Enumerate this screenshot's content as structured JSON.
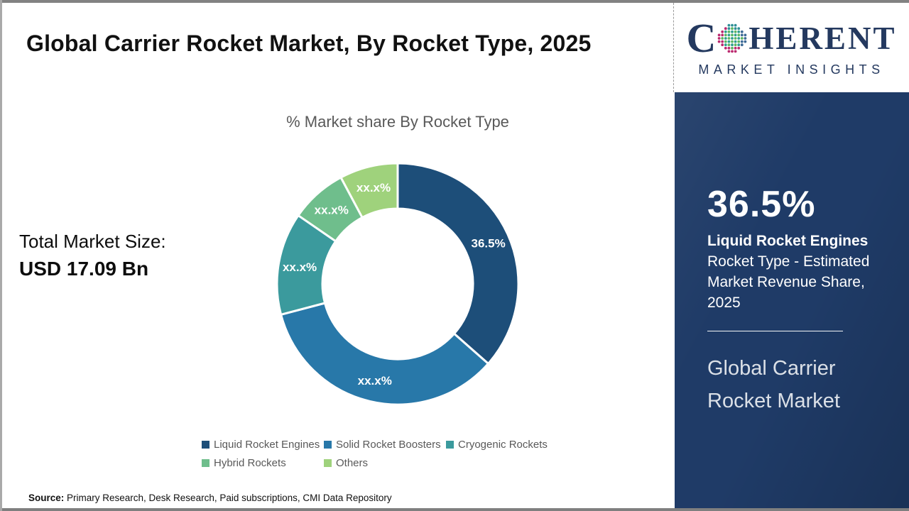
{
  "header": {
    "title": "Global Carrier Rocket Market, By Rocket Type, 2025"
  },
  "total_market": {
    "label": "Total Market Size:",
    "value": "USD 17.09 Bn"
  },
  "chart_data": {
    "type": "pie",
    "donut": true,
    "title": "% Market share By Rocket Type",
    "categories": [
      "Liquid Rocket Engines",
      "Solid Rocket Boosters",
      "Cryogenic Rockets",
      "Hybrid Rockets",
      "Others"
    ],
    "values": [
      36.5,
      34.4,
      13.7,
      7.6,
      7.8
    ],
    "labels": [
      "36.5%",
      "xx.x%",
      "xx.x%",
      "xx.x%",
      "xx.x%"
    ],
    "colors": [
      "#1d4e79",
      "#2878a9",
      "#3b9a9d",
      "#6fbe8c",
      "#9fd27c"
    ],
    "legend_position": "bottom",
    "start_angle_deg": 0,
    "note": "Only the 36.5% slice is labeled; other slice values are masked as xx.x% and estimated from arc angles"
  },
  "logo": {
    "word_start": "C",
    "word_end": "HERENT",
    "subtitle": "MARKET INSIGHTS"
  },
  "panel": {
    "stat_value": "36.5%",
    "stat_bold": "Liquid Rocket Engines",
    "stat_desc": "Rocket Type - Estimated Market Revenue Share, 2025",
    "title": "Global Carrier Rocket Market",
    "bg_color": "#1f3b67"
  },
  "source": {
    "label": "Source:",
    "text": " Primary Research, Desk Research, Paid subscriptions, CMI Data Repository"
  }
}
